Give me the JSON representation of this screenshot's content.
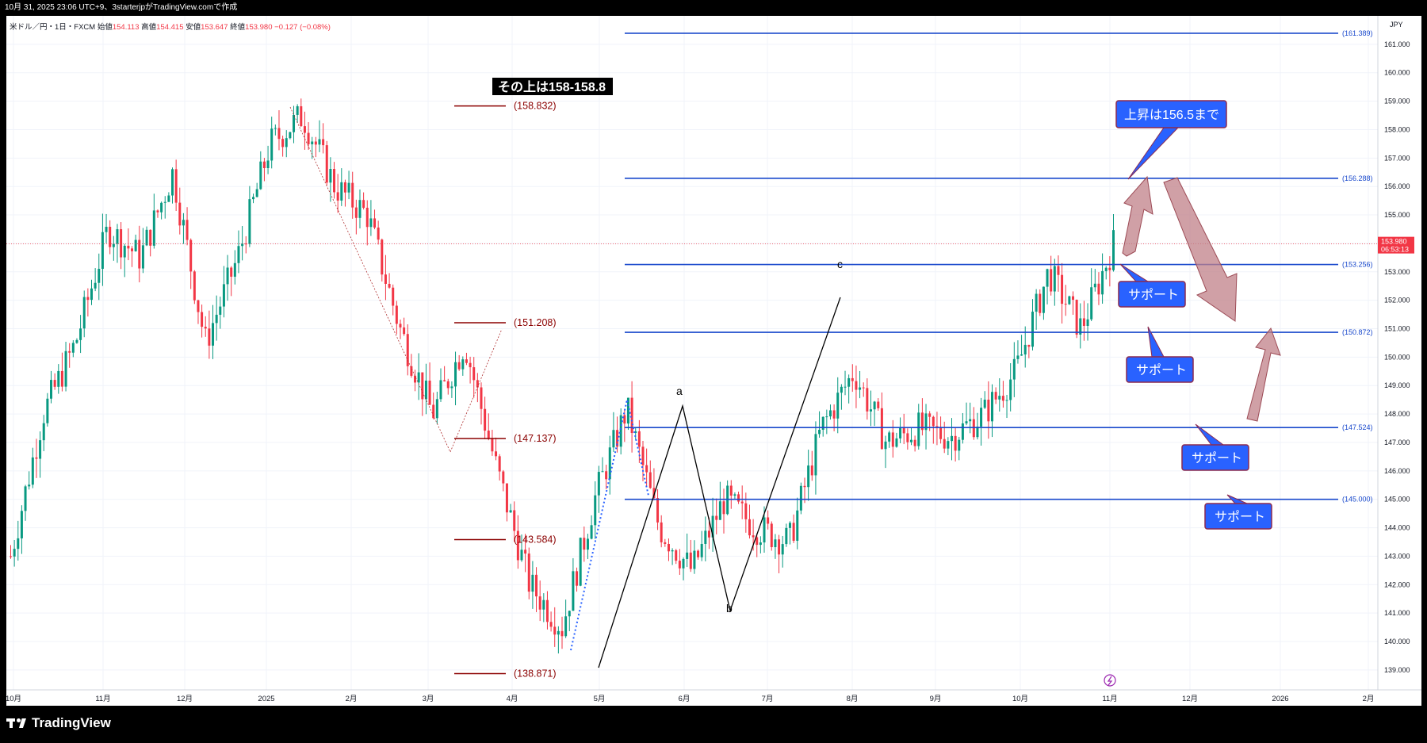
{
  "header": {
    "caption": "10月 31, 2025 23:06 UTC+9、3starterjpがTradingView.comで作成"
  },
  "legend": {
    "symbol": "米ドル／円・1日・FXCM",
    "open_label": "始値",
    "open": "154.113",
    "high_label": "高値",
    "high": "154.415",
    "low_label": "安値",
    "low": "153.647",
    "close_label": "終値",
    "close": "153.980",
    "change": "−0.127 (−0.08%)"
  },
  "footer": {
    "logo_text": "TradingView"
  },
  "colors": {
    "up": "#089981",
    "down": "#f23645",
    "level_line": "#1848cc",
    "dark_red": "#8b0000",
    "callout": "#2962ff",
    "arrow": "#c08088"
  },
  "chart_data": {
    "type": "candlestick",
    "currency": "JPY",
    "ylim": [
      138.3,
      162.0
    ],
    "y_ticks": [
      "139.000",
      "140.000",
      "141.000",
      "142.000",
      "143.000",
      "144.000",
      "145.000",
      "146.000",
      "147.000",
      "148.000",
      "149.000",
      "150.000",
      "151.000",
      "152.000",
      "153.000",
      "154.000",
      "155.000",
      "156.000",
      "157.000",
      "158.000",
      "159.000",
      "160.000",
      "161.000"
    ],
    "x_ticks": [
      "10月",
      "11月",
      "12月",
      "2025",
      "2月",
      "3月",
      "4月",
      "5月",
      "6月",
      "7月",
      "8月",
      "9月",
      "10月",
      "11月",
      "12月",
      "2026",
      "2月"
    ],
    "current_price": {
      "value": 153.98,
      "label": "153.980",
      "countdown": "06:53:13"
    },
    "price_path": [
      {
        "month": "2024-10",
        "value": 143.0
      },
      {
        "month": "2024-10",
        "value": 148.0
      },
      {
        "month": "2024-10",
        "value": 150.5
      },
      {
        "month": "2024-11",
        "value": 154.5
      },
      {
        "month": "2024-11",
        "value": 153.5
      },
      {
        "month": "2024-11",
        "value": 156.5
      },
      {
        "month": "2024-12",
        "value": 150.5
      },
      {
        "month": "2024-12",
        "value": 153.5
      },
      {
        "month": "2024-12",
        "value": 157.5
      },
      {
        "month": "2025-01",
        "value": 158.5
      },
      {
        "month": "2025-01",
        "value": 156.0
      },
      {
        "month": "2025-02",
        "value": 155.0
      },
      {
        "month": "2025-02",
        "value": 151.0
      },
      {
        "month": "2025-03",
        "value": 148.0
      },
      {
        "month": "2025-03",
        "value": 150.5
      },
      {
        "month": "2025-04",
        "value": 146.0
      },
      {
        "month": "2025-04",
        "value": 142.0
      },
      {
        "month": "2025-04",
        "value": 140.5
      },
      {
        "month": "2025-05",
        "value": 145.0
      },
      {
        "month": "2025-05",
        "value": 148.2
      },
      {
        "month": "2025-05",
        "value": 144.0
      },
      {
        "month": "2025-06",
        "value": 142.5
      },
      {
        "month": "2025-06",
        "value": 145.0
      },
      {
        "month": "2025-06",
        "value": 144.0
      },
      {
        "month": "2025-07",
        "value": 143.5
      },
      {
        "month": "2025-07",
        "value": 147.5
      },
      {
        "month": "2025-07",
        "value": 149.5
      },
      {
        "month": "2025-08",
        "value": 147.0
      },
      {
        "month": "2025-08",
        "value": 147.5
      },
      {
        "month": "2025-09",
        "value": 147.2
      },
      {
        "month": "2025-09",
        "value": 148.0
      },
      {
        "month": "2025-10",
        "value": 149.5
      },
      {
        "month": "2025-10",
        "value": 153.0
      },
      {
        "month": "2025-10",
        "value": 151.0
      },
      {
        "month": "2025-10",
        "value": 153.98
      }
    ],
    "horizontal_levels": [
      {
        "value": 161.389,
        "label": "(161.389)"
      },
      {
        "value": 156.288,
        "label": "(156.288)"
      },
      {
        "value": 153.256,
        "label": "(153.256)"
      },
      {
        "value": 150.872,
        "label": "(150.872)"
      },
      {
        "value": 147.524,
        "label": "(147.524)"
      },
      {
        "value": 145.0,
        "label": "(145.000)"
      }
    ],
    "fib_levels": [
      {
        "value": 158.832,
        "label": "(158.832)"
      },
      {
        "value": 151.208,
        "label": "(151.208)"
      },
      {
        "value": 147.137,
        "label": "(147.137)"
      },
      {
        "value": 143.584,
        "label": "(143.584)"
      },
      {
        "value": 138.871,
        "label": "(138.871)"
      }
    ],
    "wave_labels": [
      "a",
      "b",
      "c"
    ],
    "annotations": {
      "top_note": "その上は158-158.8",
      "target": "上昇は156.5まで",
      "supports": [
        "サポート",
        "サポート",
        "サポート",
        "サポート"
      ]
    }
  }
}
